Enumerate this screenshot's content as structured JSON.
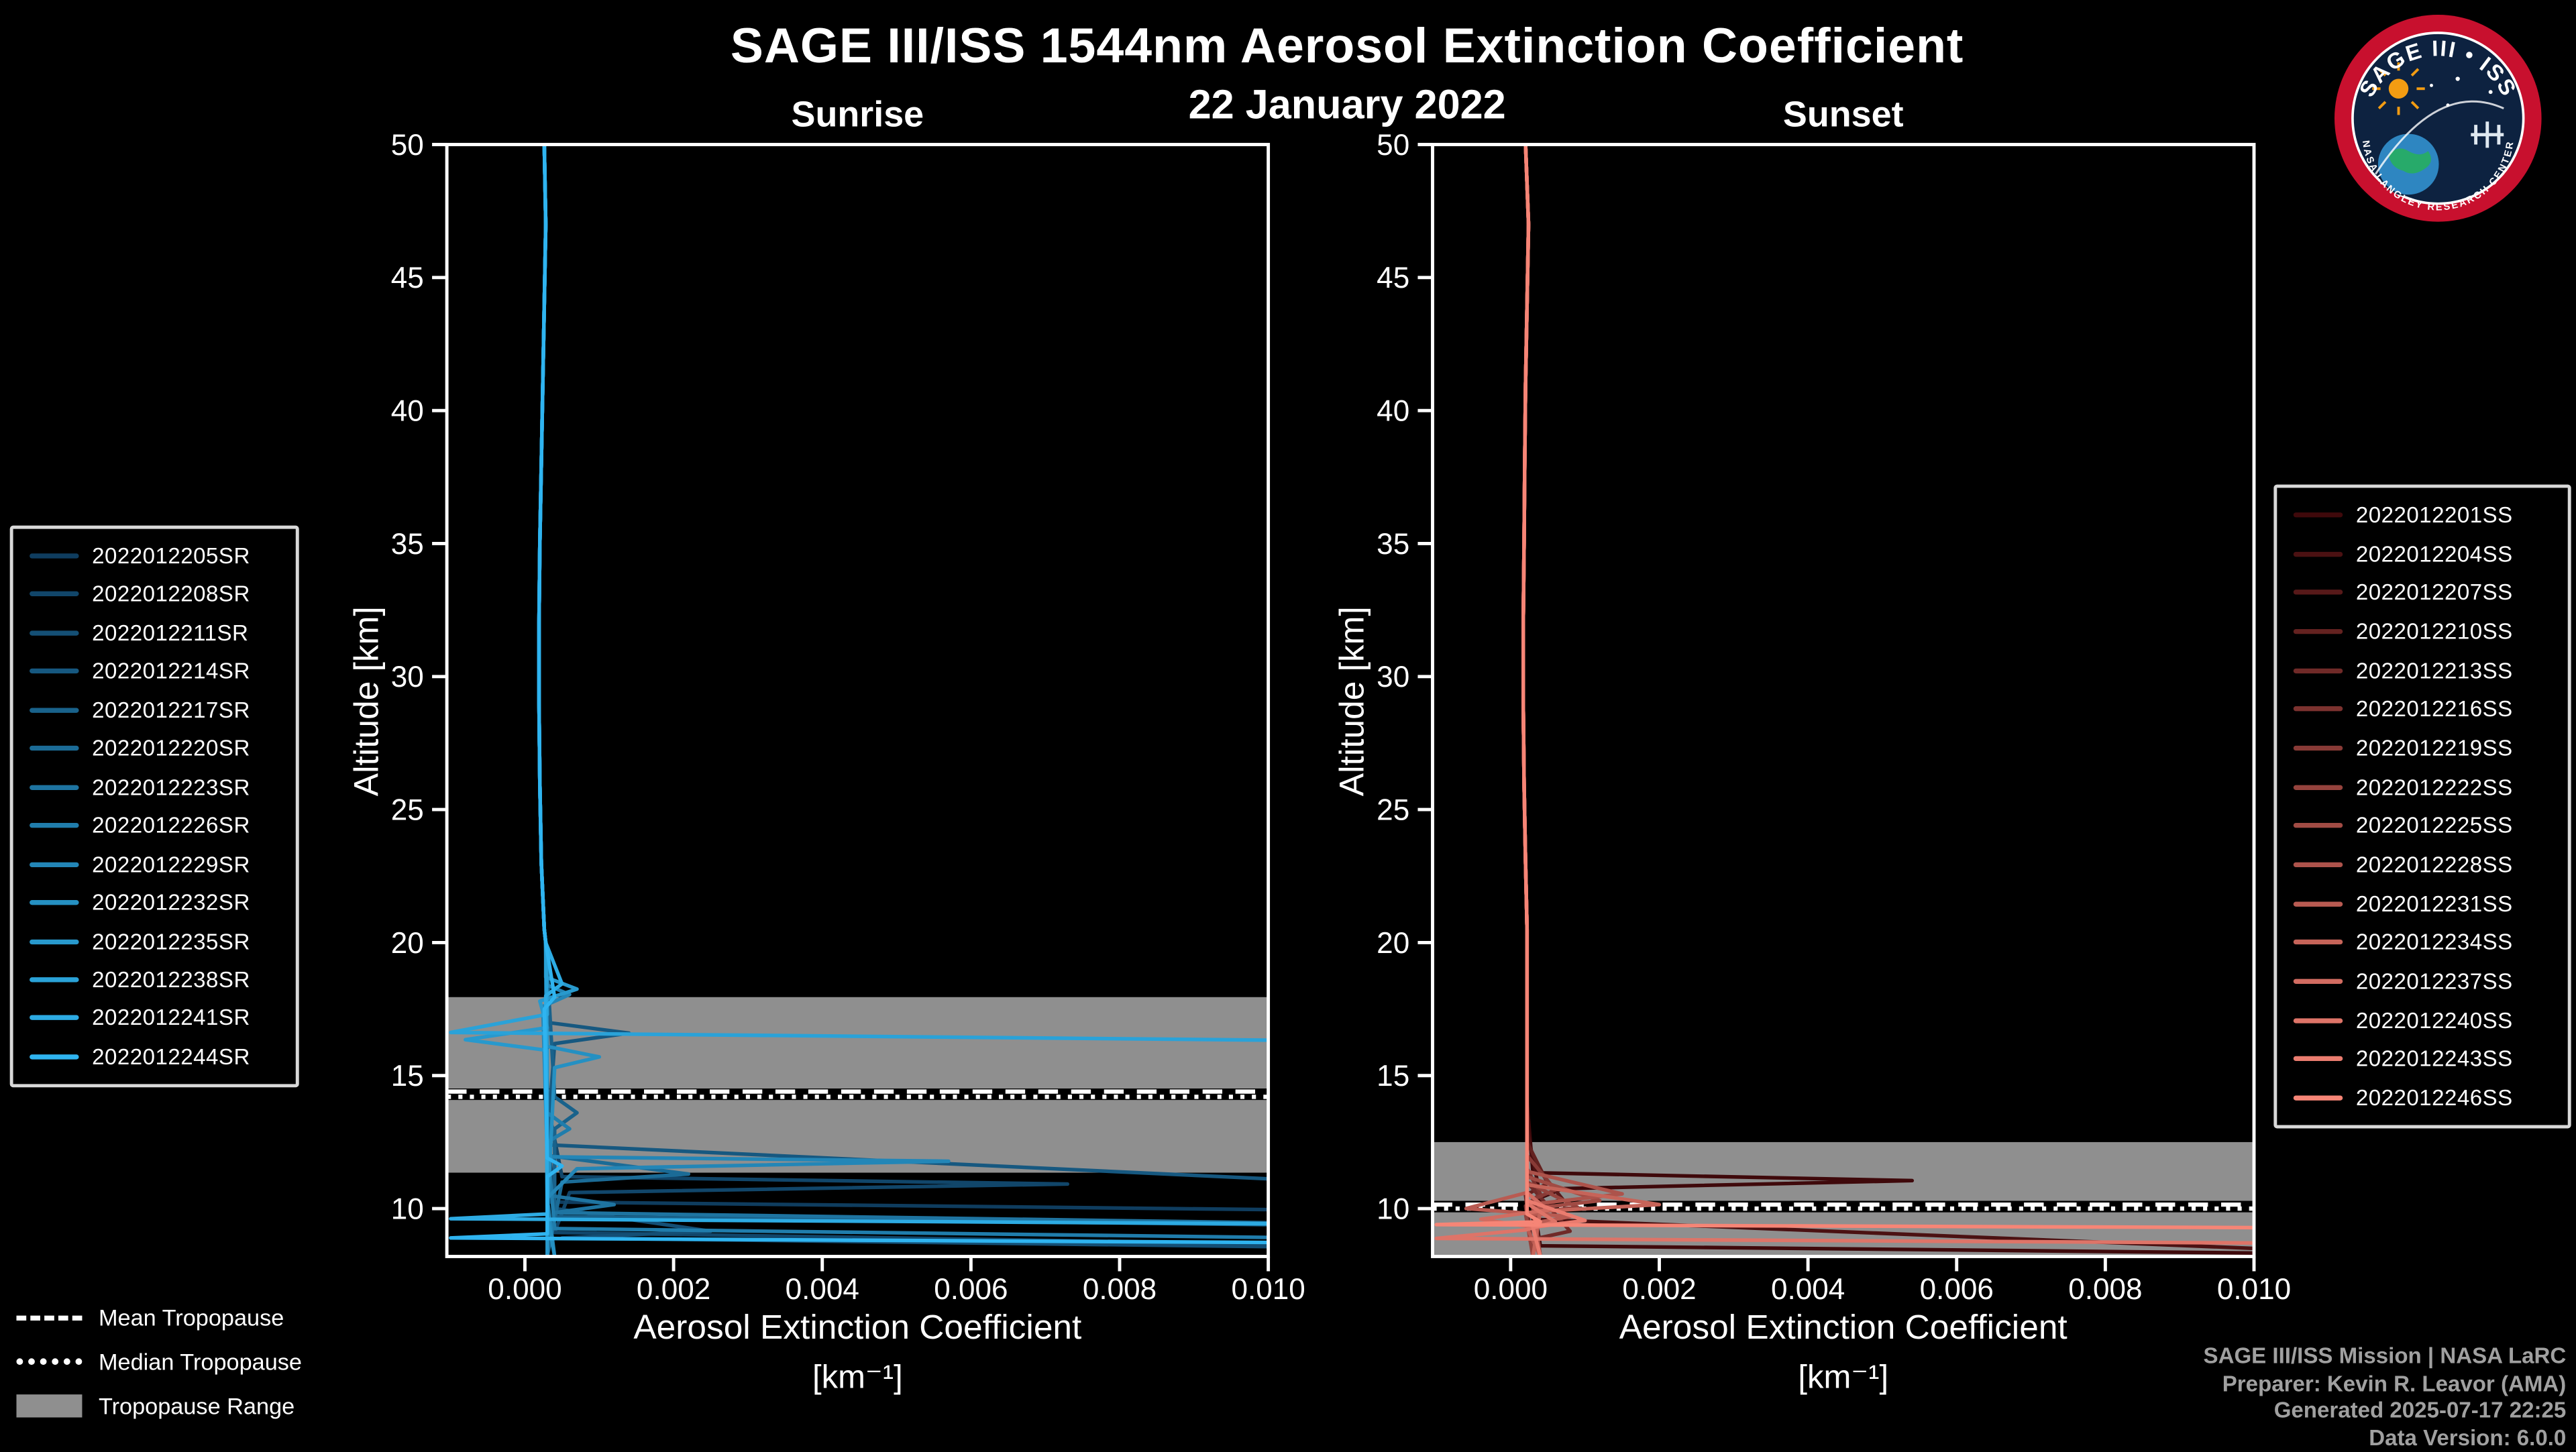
{
  "title": "SAGE III/ISS 1544nm Aerosol Extinction Coefficient",
  "date": "22 January 2022",
  "panels": {
    "sunrise_title": "Sunrise",
    "sunset_title": "Sunset"
  },
  "axes": {
    "y_label": "Altitude [km]",
    "x_label_line1": "Aerosol Extinction Coefficient",
    "x_label_line2": "[km⁻¹]"
  },
  "tropopause_legend": {
    "mean": "Mean Tropopause",
    "median": "Median Tropopause",
    "range": "Tropopause Range"
  },
  "credits": {
    "line1": "SAGE III/ISS Mission | NASA LaRC",
    "line2": "Preparer: Kevin R. Leavor (AMA)",
    "line3": "Generated 2025-07-17 22:25",
    "line4": "Data Version: 6.0.0"
  },
  "logo": {
    "title_arc": "SAGE III • ISS",
    "ring_text": "NASA LANGLEY RESEARCH CENTER"
  },
  "colors": {
    "background": "#000000",
    "band": "#8f8f8f",
    "axis": "#ffffff",
    "credits_text": "#a0a0a0"
  },
  "chart_data": [
    {
      "type": "line",
      "title": "Sunrise",
      "xlabel": "Aerosol Extinction Coefficient [km⁻¹]",
      "ylabel": "Altitude [km]",
      "xlim": [
        -0.00105,
        0.01
      ],
      "ylim": [
        8.2,
        50
      ],
      "xticks": [
        0.0,
        0.002,
        0.004,
        0.006,
        0.008,
        0.01
      ],
      "xtick_labels": [
        "0.000",
        "0.002",
        "0.004",
        "0.006",
        "0.008",
        "0.010"
      ],
      "yticks": [
        10,
        15,
        20,
        25,
        30,
        35,
        40,
        45,
        50
      ],
      "grid": false,
      "legend_position": "outside-left",
      "band_color": "#8f8f8f",
      "tropopause": {
        "mean": 14.4,
        "median": 14.2,
        "range": [
          11.35,
          17.95
        ]
      },
      "common_upper": [
        [
          0.00026,
          50
        ],
        [
          0.00028,
          47
        ],
        [
          0.00026,
          44
        ],
        [
          0.00024,
          41
        ],
        [
          0.00022,
          38
        ],
        [
          0.0002,
          35
        ],
        [
          0.00019,
          32
        ],
        [
          0.00019,
          29
        ],
        [
          0.0002,
          26
        ],
        [
          0.00022,
          23
        ],
        [
          0.00026,
          20.5
        ]
      ],
      "series": [
        {
          "name": "2022012205SR",
          "color": "#0f3d5f",
          "points": [
            [
              0.00028,
              20
            ],
            [
              0.0003,
              15
            ],
            [
              0.00032,
              12
            ],
            [
              0.0004,
              10.6
            ],
            [
              0.0003,
              10.25
            ],
            [
              0.0105,
              9.95
            ]
          ]
        },
        {
          "name": "2022012208SR",
          "color": "#11466a",
          "points": [
            [
              0.00028,
              20
            ],
            [
              0.0003,
              14
            ],
            [
              0.0005,
              11.2
            ],
            [
              0.0073,
              10.92
            ],
            [
              0.0006,
              10.6
            ],
            [
              0.0004,
              9.1
            ],
            [
              0.0105,
              8.65
            ]
          ]
        },
        {
          "name": "2022012211SR",
          "color": "#144f75",
          "points": [
            [
              0.00028,
              20
            ],
            [
              0.0003,
              13
            ],
            [
              0.0004,
              10.0
            ],
            [
              0.0025,
              9.15
            ],
            [
              0.0005,
              8.9
            ],
            [
              0.0105,
              8.55
            ]
          ]
        },
        {
          "name": "2022012214SR",
          "color": "#165880",
          "points": [
            [
              0.00028,
              20
            ],
            [
              0.0003,
              17
            ],
            [
              0.0014,
              16.6
            ],
            [
              0.0004,
              16.2
            ],
            [
              0.0003,
              12.4
            ],
            [
              0.0105,
              11.05
            ]
          ]
        },
        {
          "name": "2022012217SR",
          "color": "#19628b",
          "points": [
            [
              0.00028,
              20
            ],
            [
              0.0004,
              14.2
            ],
            [
              0.0007,
              13.6
            ],
            [
              0.0004,
              13.0
            ],
            [
              0.0004,
              9.7
            ],
            [
              0.0105,
              9.38
            ]
          ]
        },
        {
          "name": "2022012220SR",
          "color": "#1b6b96",
          "points": [
            [
              0.00028,
              20
            ],
            [
              0.0003,
              12.0
            ],
            [
              0.0022,
              11.3
            ],
            [
              0.0005,
              11.0
            ],
            [
              0.0003,
              8.2
            ]
          ]
        },
        {
          "name": "2022012223SR",
          "color": "#1e74a1",
          "points": [
            [
              0.00028,
              20
            ],
            [
              0.0003,
              10.5
            ],
            [
              0.0012,
              10.15
            ],
            [
              0.0004,
              9.85
            ],
            [
              0.0105,
              9.45
            ]
          ]
        },
        {
          "name": "2022012226SR",
          "color": "#207dac",
          "points": [
            [
              0.00028,
              20
            ],
            [
              0.0003,
              13.6
            ],
            [
              0.0006,
              13.0
            ],
            [
              0.0003,
              12.5
            ],
            [
              0.0004,
              9.25
            ],
            [
              0.0105,
              8.9
            ]
          ]
        },
        {
          "name": "2022012229SR",
          "color": "#2386b7",
          "points": [
            [
              0.00028,
              20
            ],
            [
              0.0003,
              18.4
            ],
            [
              0.0006,
              18.05
            ],
            [
              0.00024,
              17.6
            ],
            [
              0.0003,
              11.95
            ],
            [
              0.0057,
              11.78
            ],
            [
              0.0007,
              11.5
            ],
            [
              0.0003,
              10.4
            ],
            [
              0.0004,
              8.2
            ]
          ]
        },
        {
          "name": "2022012232SR",
          "color": "#2590c2",
          "points": [
            [
              0.00028,
              20
            ],
            [
              0.0003,
              16.1
            ],
            [
              0.001,
              15.7
            ],
            [
              0.0004,
              15.3
            ],
            [
              0.0003,
              9.8
            ],
            [
              0.0004,
              8.2
            ]
          ]
        },
        {
          "name": "2022012235SR",
          "color": "#2899cd",
          "points": [
            [
              0.00028,
              20
            ],
            [
              0.00028,
              18.7
            ],
            [
              0.0007,
              18.25
            ],
            [
              0.0002,
              17.8
            ],
            [
              0.0003,
              16.8
            ],
            [
              -0.0008,
              16.35
            ],
            [
              0.0003,
              15.95
            ],
            [
              0.0003,
              8.2
            ]
          ]
        },
        {
          "name": "2022012238SR",
          "color": "#2aa2d8",
          "points": [
            [
              0.00028,
              20
            ],
            [
              0.0003,
              17.3
            ],
            [
              -0.001,
              16.62
            ],
            [
              0.0105,
              16.32
            ]
          ]
        },
        {
          "name": "2022012241SR",
          "color": "#2dabe3",
          "points": [
            [
              0.00028,
              20
            ],
            [
              0.0005,
              18.45
            ],
            [
              0.00028,
              18.0
            ],
            [
              0.0003,
              9.8
            ],
            [
              -0.001,
              9.62
            ],
            [
              0.0105,
              9.42
            ]
          ]
        },
        {
          "name": "2022012244SR",
          "color": "#2fb4f0",
          "points": [
            [
              0.00028,
              20
            ],
            [
              0.0004,
              17.95
            ],
            [
              0.00026,
              17.5
            ],
            [
              0.0003,
              11.9
            ],
            [
              0.0005,
              11.6
            ],
            [
              0.0003,
              11.2
            ],
            [
              0.0003,
              9.05
            ],
            [
              -0.001,
              8.9
            ],
            [
              0.0105,
              8.72
            ]
          ]
        }
      ]
    },
    {
      "type": "line",
      "title": "Sunset",
      "xlabel": "Aerosol Extinction Coefficient [km⁻¹]",
      "ylabel": "Altitude [km]",
      "xlim": [
        -0.00105,
        0.01
      ],
      "ylim": [
        8.2,
        50
      ],
      "xticks": [
        0.0,
        0.002,
        0.004,
        0.006,
        0.008,
        0.01
      ],
      "xtick_labels": [
        "0.000",
        "0.002",
        "0.004",
        "0.006",
        "0.008",
        "0.010"
      ],
      "yticks": [
        10,
        15,
        20,
        25,
        30,
        35,
        40,
        45,
        50
      ],
      "grid": false,
      "legend_position": "outside-right",
      "band_color": "#8f8f8f",
      "tropopause": {
        "mean": 10.15,
        "median": 10.0,
        "range": [
          8.2,
          12.5
        ]
      },
      "common_upper": [
        [
          0.0002,
          50
        ],
        [
          0.00024,
          47
        ],
        [
          0.00022,
          44
        ],
        [
          0.0002,
          41
        ],
        [
          0.00019,
          38
        ],
        [
          0.00018,
          35
        ],
        [
          0.00017,
          32
        ],
        [
          0.00017,
          29
        ],
        [
          0.00018,
          26
        ],
        [
          0.0002,
          23
        ],
        [
          0.00022,
          20.5
        ]
      ],
      "series": [
        {
          "name": "2022012201SS",
          "color": "#3f090b",
          "points": [
            [
              0.00022,
              20
            ],
            [
              0.00022,
              14
            ],
            [
              0.0003,
              11.35
            ],
            [
              0.0054,
              11.05
            ],
            [
              0.0007,
              10.75
            ],
            [
              0.0003,
              10.3
            ],
            [
              0.0004,
              8.6
            ],
            [
              0.0105,
              8.32
            ]
          ]
        },
        {
          "name": "2022012204SS",
          "color": "#4b1112",
          "points": [
            [
              0.00022,
              20
            ],
            [
              0.00022,
              13
            ],
            [
              0.0004,
              10.45
            ],
            [
              0.0003,
              9.6
            ],
            [
              0.0105,
              8.45
            ]
          ]
        },
        {
          "name": "2022012207SS",
          "color": "#571919",
          "points": [
            [
              0.00022,
              20
            ],
            [
              0.00022,
              12
            ],
            [
              0.0007,
              10.35
            ],
            [
              0.0003,
              10.0
            ],
            [
              0.0004,
              8.2
            ]
          ]
        },
        {
          "name": "2022012210SS",
          "color": "#642220",
          "points": [
            [
              0.00022,
              20
            ],
            [
              0.00022,
              12.5
            ],
            [
              0.0005,
              10.95
            ],
            [
              0.0002,
              10.5
            ],
            [
              0.0003,
              8.2
            ]
          ]
        },
        {
          "name": "2022012213SS",
          "color": "#702a28",
          "points": [
            [
              0.00022,
              20
            ],
            [
              0.00022,
              11
            ],
            [
              0.0008,
              9.15
            ],
            [
              0.0003,
              8.85
            ],
            [
              0.0004,
              8.2
            ]
          ]
        },
        {
          "name": "2022012216SS",
          "color": "#7c322f",
          "points": [
            [
              0.00022,
              20
            ],
            [
              0.00022,
              11.5
            ],
            [
              0.0004,
              10.55
            ],
            [
              0.0002,
              10.1
            ],
            [
              0.0003,
              8.2
            ]
          ]
        },
        {
          "name": "2022012219SS",
          "color": "#883a36",
          "points": [
            [
              0.00022,
              20
            ],
            [
              0.00022,
              12
            ],
            [
              0.0006,
              10.7
            ],
            [
              0.0003,
              10.35
            ],
            [
              0.0004,
              8.2
            ]
          ]
        },
        {
          "name": "2022012222SS",
          "color": "#95433d",
          "points": [
            [
              0.00022,
              20
            ],
            [
              0.00022,
              11
            ],
            [
              0.0009,
              10.05
            ],
            [
              0.0002,
              9.8
            ],
            [
              0.0003,
              8.2
            ]
          ]
        },
        {
          "name": "2022012225SS",
          "color": "#a14b44",
          "points": [
            [
              0.00022,
              20
            ],
            [
              0.00022,
              11.2
            ],
            [
              0.0012,
              10.3
            ],
            [
              0.0003,
              10.0
            ],
            [
              0.0004,
              8.2
            ]
          ]
        },
        {
          "name": "2022012228SS",
          "color": "#ad534b",
          "points": [
            [
              0.00022,
              20
            ],
            [
              0.00022,
              11.4
            ],
            [
              0.0015,
              10.55
            ],
            [
              0.0004,
              10.2
            ],
            [
              0.0003,
              8.2
            ]
          ]
        },
        {
          "name": "2022012231SS",
          "color": "#b95b52",
          "points": [
            [
              0.00022,
              20
            ],
            [
              0.00022,
              10.6
            ],
            [
              -0.0006,
              10.0
            ],
            [
              0.0008,
              9.7
            ],
            [
              0.0002,
              9.4
            ],
            [
              0.0004,
              8.2
            ]
          ]
        },
        {
          "name": "2022012234SS",
          "color": "#c66459",
          "points": [
            [
              0.00022,
              20
            ],
            [
              0.00022,
              10.9
            ],
            [
              0.002,
              10.15
            ],
            [
              0.0004,
              9.9
            ],
            [
              0.0003,
              8.2
            ]
          ]
        },
        {
          "name": "2022012237SS",
          "color": "#d26c61",
          "points": [
            [
              0.00022,
              20
            ],
            [
              0.00022,
              10.6
            ],
            [
              0.0005,
              9.95
            ],
            [
              -0.0004,
              9.6
            ],
            [
              0.0003,
              9.3
            ],
            [
              0.0004,
              8.2
            ]
          ]
        },
        {
          "name": "2022012240SS",
          "color": "#de7468",
          "points": [
            [
              0.00022,
              20
            ],
            [
              0.00022,
              10.2
            ],
            [
              0.0006,
              9.5
            ],
            [
              0.0002,
              9.2
            ],
            [
              -0.001,
              8.88
            ],
            [
              0.0105,
              8.7
            ]
          ]
        },
        {
          "name": "2022012243SS",
          "color": "#ea7c6f",
          "points": [
            [
              0.00022,
              20
            ],
            [
              0.00022,
              10.3
            ],
            [
              0.001,
              9.55
            ],
            [
              0.0003,
              9.3
            ],
            [
              0.0004,
              8.2
            ]
          ]
        },
        {
          "name": "2022012246SS",
          "color": "#f68576",
          "points": [
            [
              0.00022,
              20
            ],
            [
              0.00022,
              9.8
            ],
            [
              0.0004,
              9.5
            ],
            [
              -0.001,
              9.4
            ],
            [
              0.0105,
              9.28
            ]
          ]
        }
      ]
    }
  ]
}
